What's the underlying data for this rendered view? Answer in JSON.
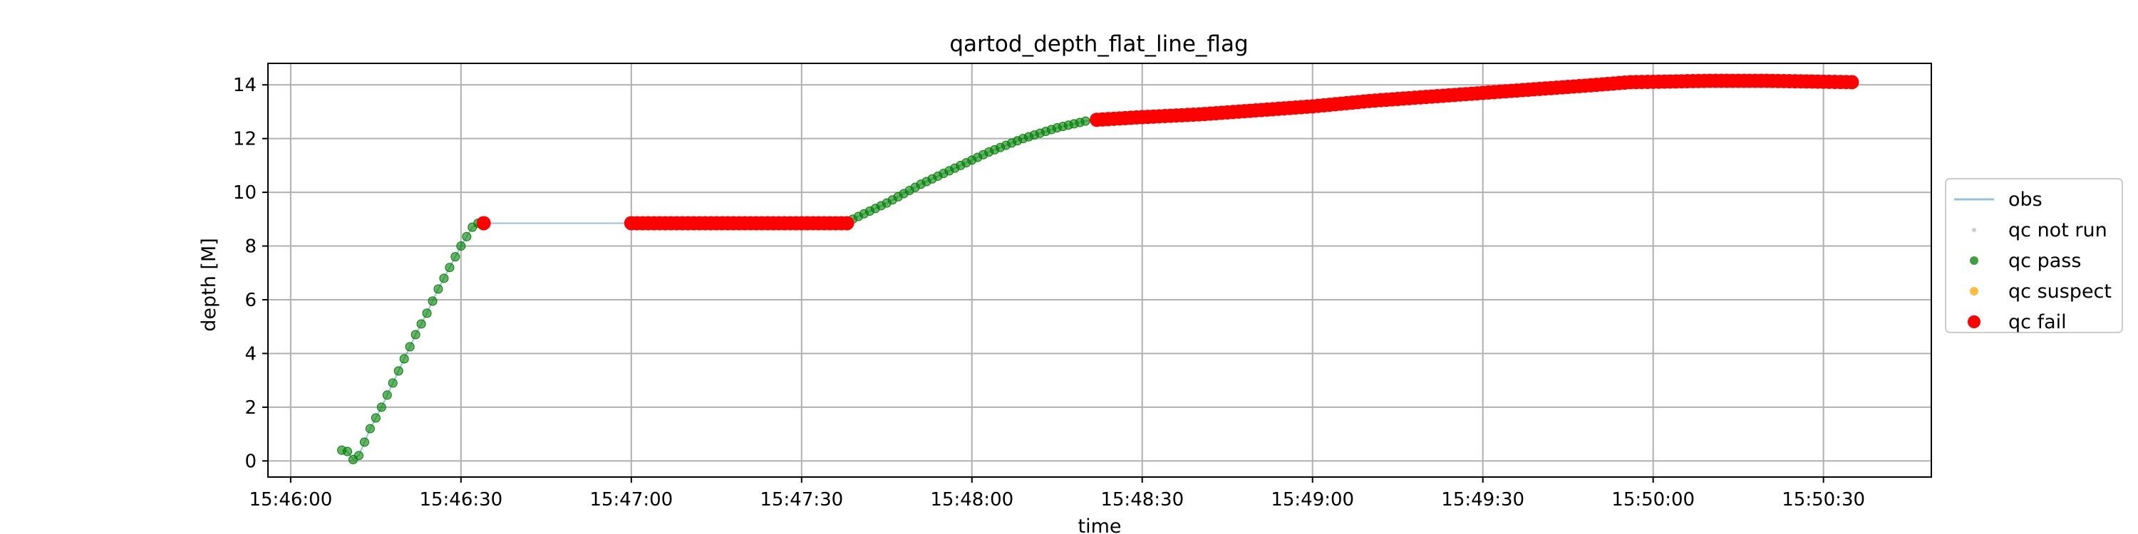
{
  "chart_data": {
    "type": "scatter",
    "title": "qartod_depth_flat_line_flag",
    "xlabel": "time",
    "ylabel": "depth [M]",
    "grid": true,
    "legend_position": "center-right, outside plot",
    "x_ticks": [
      "15:46:00",
      "15:46:30",
      "15:47:00",
      "15:47:30",
      "15:48:00",
      "15:48:30",
      "15:49:00",
      "15:49:30",
      "15:50:00",
      "15:50:30"
    ],
    "x_range": [
      "15:45:56",
      "15:50:49"
    ],
    "y_ticks": [
      0,
      2,
      4,
      6,
      8,
      10,
      12,
      14
    ],
    "ylim": [
      -0.6,
      14.8
    ],
    "legend": [
      {
        "label": "obs",
        "marker": "line",
        "color": "#1f77b4"
      },
      {
        "label": "qc not run",
        "marker": "dot-small",
        "color": "#a9a9a9"
      },
      {
        "label": "qc pass",
        "marker": "dot",
        "color": "#008000"
      },
      {
        "label": "qc suspect",
        "marker": "dot",
        "color": "#ffa500"
      },
      {
        "label": "qc fail",
        "marker": "dot-large",
        "color": "#ff0000"
      }
    ],
    "colors": {
      "obs": "#1f77b4",
      "pass": "#008000",
      "suspect": "#ffa500",
      "fail": "#ff0000",
      "not_run": "#a9a9a9"
    },
    "series": [
      {
        "name": "qc pass",
        "points": [
          {
            "x": "15:46:09",
            "y": 0.4
          },
          {
            "x": "15:46:10",
            "y": 0.35
          },
          {
            "x": "15:46:11",
            "y": 0.05
          },
          {
            "x": "15:46:12",
            "y": 0.2
          },
          {
            "x": "15:46:13",
            "y": 0.7
          },
          {
            "x": "15:46:14",
            "y": 1.2
          },
          {
            "x": "15:46:16",
            "y": 2.0
          },
          {
            "x": "15:46:18",
            "y": 2.9
          },
          {
            "x": "15:46:20",
            "y": 3.8
          },
          {
            "x": "15:46:22",
            "y": 4.7
          },
          {
            "x": "15:46:24",
            "y": 5.5
          },
          {
            "x": "15:46:26",
            "y": 6.4
          },
          {
            "x": "15:46:28",
            "y": 7.2
          },
          {
            "x": "15:46:30",
            "y": 8.0
          },
          {
            "x": "15:46:32",
            "y": 8.7
          },
          {
            "x": "15:46:33",
            "y": 8.85
          },
          {
            "x": "15:47:39",
            "y": 9.0
          },
          {
            "x": "15:47:45",
            "y": 9.6
          },
          {
            "x": "15:47:51",
            "y": 10.3
          },
          {
            "x": "15:47:57",
            "y": 10.9
          },
          {
            "x": "15:48:03",
            "y": 11.5
          },
          {
            "x": "15:48:09",
            "y": 12.0
          },
          {
            "x": "15:48:15",
            "y": 12.4
          },
          {
            "x": "15:48:20",
            "y": 12.65
          }
        ]
      },
      {
        "name": "qc suspect",
        "points": [
          {
            "x": "15:49:40",
            "y": 13.9
          },
          {
            "x": "15:49:46",
            "y": 13.95
          }
        ]
      },
      {
        "name": "qc fail",
        "points": [
          {
            "x": "15:46:34",
            "y": 8.85
          },
          {
            "x": "15:47:00",
            "y": 8.85
          },
          {
            "x": "15:47:20",
            "y": 8.85
          },
          {
            "x": "15:47:38",
            "y": 8.85
          },
          {
            "x": "15:48:22",
            "y": 12.7
          },
          {
            "x": "15:48:30",
            "y": 12.8
          },
          {
            "x": "15:48:40",
            "y": 12.9
          },
          {
            "x": "15:48:50",
            "y": 13.05
          },
          {
            "x": "15:49:00",
            "y": 13.2
          },
          {
            "x": "15:49:10",
            "y": 13.4
          },
          {
            "x": "15:49:20",
            "y": 13.55
          },
          {
            "x": "15:49:30",
            "y": 13.7
          },
          {
            "x": "15:49:40",
            "y": 13.85
          },
          {
            "x": "15:49:50",
            "y": 14.0
          },
          {
            "x": "15:49:56",
            "y": 14.1
          },
          {
            "x": "15:50:10",
            "y": 14.15
          },
          {
            "x": "15:50:20",
            "y": 14.15
          },
          {
            "x": "15:50:35",
            "y": 14.1
          }
        ]
      }
    ]
  }
}
